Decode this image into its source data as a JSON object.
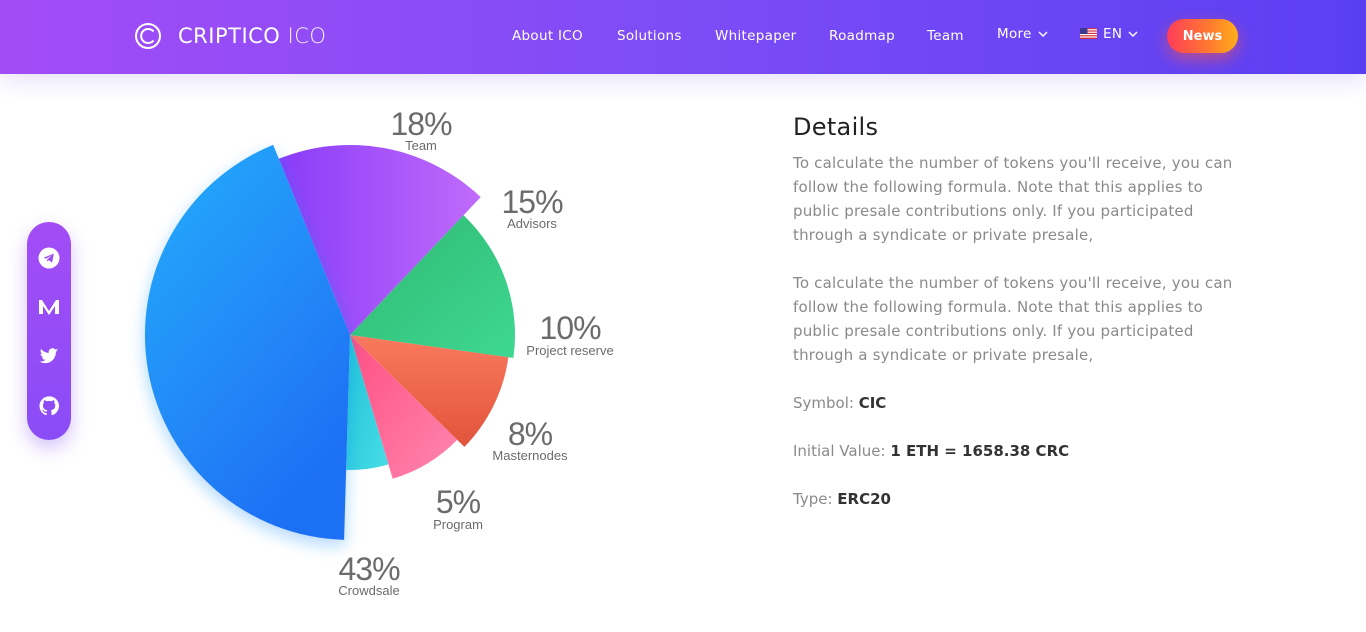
{
  "brand": {
    "name_strong": "CRIPTICO",
    "name_light": "ICO"
  },
  "nav": {
    "items": [
      {
        "label": "About ICO"
      },
      {
        "label": "Solutions"
      },
      {
        "label": "Whitepaper"
      },
      {
        "label": "Roadmap"
      },
      {
        "label": "Team"
      }
    ],
    "more_label": "More",
    "lang_label": "EN",
    "news_label": "News"
  },
  "social": {
    "icons": [
      "telegram-icon",
      "medium-icon",
      "twitter-icon",
      "github-icon"
    ]
  },
  "chart_data": {
    "type": "pie",
    "slices": [
      {
        "name": "Team",
        "value": 18,
        "label": "18%",
        "color": "#9b4dfb"
      },
      {
        "name": "Advisors",
        "value": 15,
        "label": "15%",
        "color": "#35c98a"
      },
      {
        "name": "Project reserve",
        "value": 10,
        "label": "10%",
        "color": "#f0674e"
      },
      {
        "name": "Masternodes",
        "value": 8,
        "label": "8%",
        "color": "#fb5f92"
      },
      {
        "name": "Program",
        "value": 5,
        "label": "5%",
        "color": "#33d0df"
      },
      {
        "name": "Crowdsale",
        "value": 43,
        "label": "43%",
        "color": "#1f8ff8"
      }
    ]
  },
  "details": {
    "title": "Details",
    "paragraph1": "To calculate the number of tokens you'll receive, you can follow the following formula. Note that this applies to public presale contributions only. If you participated through a syndicate or private presale,",
    "paragraph2": "To calculate the number of tokens you'll receive, you can follow the following formula. Note that this applies to public presale contributions only. If you participated through a syndicate or private presale,",
    "symbol_label": "Symbol:",
    "symbol_value": "CIC",
    "initial_label": "Initial Value:",
    "initial_value": "1 ETH = 1658.38 CRC",
    "type_label": "Type:",
    "type_value": "ERC20"
  }
}
